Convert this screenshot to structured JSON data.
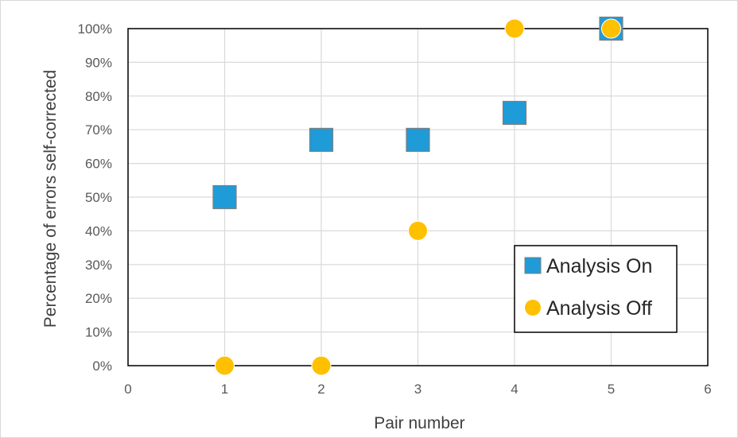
{
  "chart_data": {
    "type": "scatter",
    "title": "",
    "xlabel": "Pair number",
    "ylabel": "Percentage of errors self-corrected",
    "xlim": [
      0,
      6
    ],
    "ylim": [
      0,
      100
    ],
    "x_ticks": [
      "0",
      "1",
      "2",
      "3",
      "4",
      "5",
      "6"
    ],
    "y_ticks": [
      "0%",
      "10%",
      "20%",
      "30%",
      "40%",
      "50%",
      "60%",
      "70%",
      "80%",
      "90%",
      "100%"
    ],
    "grid": true,
    "legend_position": "bottom-right",
    "series": [
      {
        "name": "Analysis On",
        "marker": "square",
        "color": "#1f9bd7",
        "x": [
          1,
          2,
          3,
          4,
          5
        ],
        "y": [
          50,
          67,
          67,
          75,
          100
        ]
      },
      {
        "name": "Analysis Off",
        "marker": "circle",
        "color": "#ffc000",
        "x": [
          1,
          2,
          3,
          4,
          5
        ],
        "y": [
          0,
          0,
          40,
          100,
          100
        ]
      }
    ]
  }
}
